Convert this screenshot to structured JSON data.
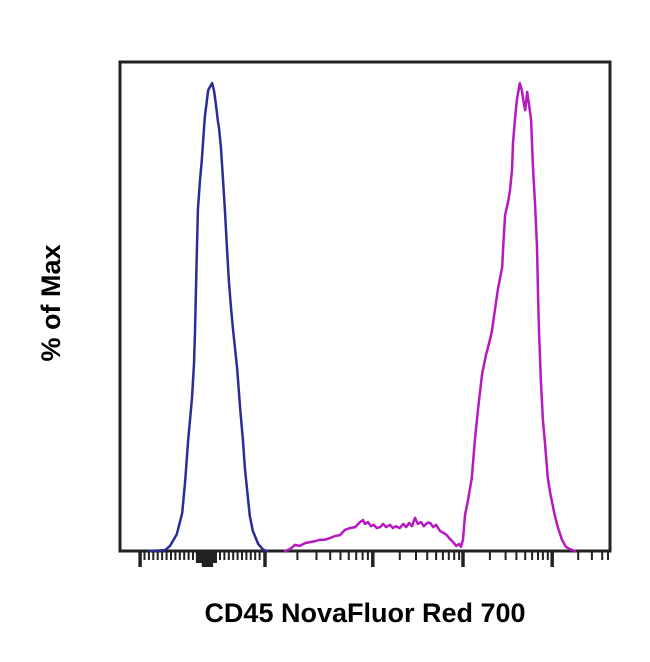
{
  "chart_data": {
    "type": "line",
    "subtype": "flow-cytometry-overlay-histogram",
    "title": "",
    "xlabel": "CD45 NovaFluor Red 700",
    "ylabel": "% of Max",
    "xlim": [
      0,
      1
    ],
    "ylim": [
      0,
      104.5
    ],
    "grid": false,
    "legend": "none",
    "axis_color": "#222222",
    "x_axis": {
      "tick_labels": "none",
      "scale_appearance": "log-like, unlabeled ticks on bottom axis only",
      "major_ticks": [
        0.041,
        0.296,
        0.516,
        0.7,
        0.882
      ],
      "minor_ticks": [
        0.05,
        0.059,
        0.068,
        0.077,
        0.086,
        0.095,
        0.104,
        0.113,
        0.122,
        0.131,
        0.14,
        0.149,
        0.204,
        0.213,
        0.222,
        0.231,
        0.24,
        0.249,
        0.258,
        0.267,
        0.276,
        0.285,
        0.362,
        0.401,
        0.429,
        0.45,
        0.467,
        0.482,
        0.495,
        0.506,
        0.571,
        0.604,
        0.627,
        0.645,
        0.659,
        0.671,
        0.682,
        0.692,
        0.755,
        0.787,
        0.809,
        0.827,
        0.841,
        0.853,
        0.863,
        0.873,
        0.935,
        0.963,
        0.984,
        0.996
      ],
      "zero_tick_cluster": [
        {
          "from": 0.155,
          "to": 0.198,
          "len": 13
        },
        {
          "from": 0.167,
          "to": 0.19,
          "len": 17
        }
      ]
    },
    "series": [
      {
        "name": "left peak (blue curve)",
        "color": "#2c2c96",
        "points": [
          [
            0.06,
            0
          ],
          [
            0.092,
            0.2
          ],
          [
            0.102,
            1.1
          ],
          [
            0.116,
            3.6
          ],
          [
            0.127,
            8.1
          ],
          [
            0.133,
            15.0
          ],
          [
            0.139,
            23.5
          ],
          [
            0.147,
            32.7
          ],
          [
            0.151,
            40.0
          ],
          [
            0.153,
            47.0
          ],
          [
            0.154,
            51.5
          ],
          [
            0.156,
            60.0
          ],
          [
            0.159,
            72.9
          ],
          [
            0.163,
            79.0
          ],
          [
            0.167,
            83.5
          ],
          [
            0.173,
            92.7
          ],
          [
            0.18,
            98.5
          ],
          [
            0.188,
            100.0
          ],
          [
            0.192,
            98.3
          ],
          [
            0.196,
            95.3
          ],
          [
            0.2,
            91.7
          ],
          [
            0.202,
            90.4
          ],
          [
            0.206,
            86.3
          ],
          [
            0.21,
            79.7
          ],
          [
            0.214,
            72.9
          ],
          [
            0.218,
            65.4
          ],
          [
            0.222,
            57.9
          ],
          [
            0.227,
            51.5
          ],
          [
            0.231,
            47.0
          ],
          [
            0.239,
            39.1
          ],
          [
            0.245,
            30.6
          ],
          [
            0.251,
            23.5
          ],
          [
            0.255,
            17.7
          ],
          [
            0.259,
            13.5
          ],
          [
            0.265,
            7.5
          ],
          [
            0.271,
            4.3
          ],
          [
            0.282,
            1.5
          ],
          [
            0.292,
            0.3
          ],
          [
            0.3,
            0
          ]
        ]
      },
      {
        "name": "right peak (magenta curve)",
        "color": "#b818bf",
        "points": [
          [
            0.337,
            0
          ],
          [
            0.347,
            0.4
          ],
          [
            0.357,
            1.3
          ],
          [
            0.367,
            1.1
          ],
          [
            0.378,
            1.7
          ],
          [
            0.388,
            1.9
          ],
          [
            0.398,
            2.1
          ],
          [
            0.408,
            2.4
          ],
          [
            0.418,
            2.4
          ],
          [
            0.429,
            2.8
          ],
          [
            0.439,
            3.2
          ],
          [
            0.449,
            3.4
          ],
          [
            0.459,
            4.5
          ],
          [
            0.469,
            4.9
          ],
          [
            0.48,
            5.1
          ],
          [
            0.49,
            6.2
          ],
          [
            0.496,
            6.6
          ],
          [
            0.5,
            5.8
          ],
          [
            0.506,
            6.2
          ],
          [
            0.512,
            5.3
          ],
          [
            0.518,
            5.6
          ],
          [
            0.524,
            4.9
          ],
          [
            0.531,
            5.1
          ],
          [
            0.537,
            5.8
          ],
          [
            0.543,
            5.1
          ],
          [
            0.551,
            5.6
          ],
          [
            0.557,
            4.9
          ],
          [
            0.563,
            5.3
          ],
          [
            0.571,
            4.9
          ],
          [
            0.578,
            5.8
          ],
          [
            0.584,
            5.1
          ],
          [
            0.59,
            6.0
          ],
          [
            0.596,
            5.3
          ],
          [
            0.602,
            7.1
          ],
          [
            0.608,
            5.8
          ],
          [
            0.614,
            6.2
          ],
          [
            0.62,
            5.3
          ],
          [
            0.627,
            6.0
          ],
          [
            0.633,
            6.0
          ],
          [
            0.639,
            5.1
          ],
          [
            0.645,
            5.6
          ],
          [
            0.653,
            4.3
          ],
          [
            0.661,
            3.8
          ],
          [
            0.667,
            3.4
          ],
          [
            0.673,
            2.6
          ],
          [
            0.68,
            1.9
          ],
          [
            0.686,
            1.1
          ],
          [
            0.692,
            1.5
          ],
          [
            0.696,
            0.9
          ],
          [
            0.7,
            2.4
          ],
          [
            0.704,
            7.7
          ],
          [
            0.71,
            10.7
          ],
          [
            0.718,
            15.6
          ],
          [
            0.724,
            23.5
          ],
          [
            0.731,
            30.6
          ],
          [
            0.739,
            37.8
          ],
          [
            0.747,
            41.9
          ],
          [
            0.755,
            45.1
          ],
          [
            0.759,
            47.0
          ],
          [
            0.765,
            51.5
          ],
          [
            0.771,
            55.8
          ],
          [
            0.78,
            60.7
          ],
          [
            0.782,
            65.0
          ],
          [
            0.786,
            71.8
          ],
          [
            0.792,
            74.6
          ],
          [
            0.796,
            77.1
          ],
          [
            0.8,
            81.4
          ],
          [
            0.802,
            87.2
          ],
          [
            0.806,
            92.1
          ],
          [
            0.81,
            96.4
          ],
          [
            0.816,
            100.0
          ],
          [
            0.82,
            98.5
          ],
          [
            0.824,
            95.7
          ],
          [
            0.827,
            94.2
          ],
          [
            0.831,
            98.1
          ],
          [
            0.835,
            95.3
          ],
          [
            0.839,
            92.1
          ],
          [
            0.843,
            81.4
          ],
          [
            0.847,
            74.4
          ],
          [
            0.851,
            65.0
          ],
          [
            0.853,
            55.1
          ],
          [
            0.855,
            47.0
          ],
          [
            0.859,
            36.3
          ],
          [
            0.863,
            28.0
          ],
          [
            0.867,
            23.5
          ],
          [
            0.873,
            15.6
          ],
          [
            0.878,
            12.4
          ],
          [
            0.884,
            9.2
          ],
          [
            0.888,
            7.3
          ],
          [
            0.894,
            4.9
          ],
          [
            0.902,
            2.4
          ],
          [
            0.91,
            0.9
          ],
          [
            0.918,
            0.4
          ],
          [
            0.929,
            0
          ]
        ]
      }
    ]
  }
}
